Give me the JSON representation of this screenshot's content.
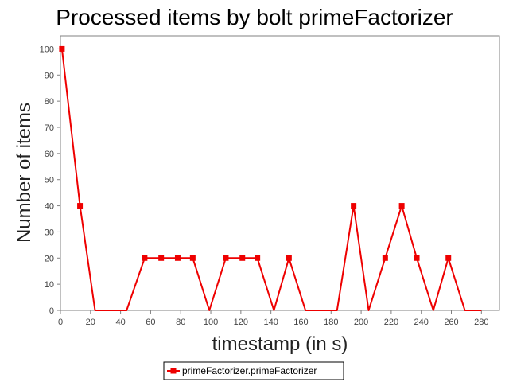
{
  "chart_data": {
    "type": "line",
    "title": "Processed items by bolt primeFactorizer",
    "xlabel": "timestamp (in s)",
    "ylabel": "Number of items",
    "xlim": [
      0,
      292
    ],
    "ylim": [
      0,
      105
    ],
    "xticks": [
      0,
      20,
      40,
      60,
      80,
      100,
      120,
      140,
      160,
      180,
      200,
      220,
      240,
      260,
      280
    ],
    "yticks": [
      0,
      10,
      20,
      30,
      40,
      50,
      60,
      70,
      80,
      90,
      100
    ],
    "grid": false,
    "legend": "bottom",
    "series": [
      {
        "name": "primeFactorizer.primeFactorizer",
        "color": "#ee0000",
        "marker": "square",
        "x": [
          1,
          13,
          23,
          44,
          56,
          67,
          78,
          88,
          99,
          110,
          121,
          131,
          142,
          152,
          163,
          184,
          195,
          205,
          216,
          227,
          237,
          248,
          258,
          269,
          280
        ],
        "y": [
          100,
          40,
          0,
          0,
          20,
          20,
          20,
          20,
          0,
          20,
          20,
          20,
          0,
          20,
          0,
          0,
          40,
          0,
          20,
          40,
          20,
          0,
          20,
          0,
          0
        ],
        "marked": [
          true,
          true,
          false,
          false,
          true,
          true,
          true,
          true,
          false,
          true,
          true,
          true,
          false,
          true,
          false,
          false,
          true,
          false,
          true,
          true,
          true,
          false,
          true,
          false,
          false
        ]
      }
    ]
  }
}
